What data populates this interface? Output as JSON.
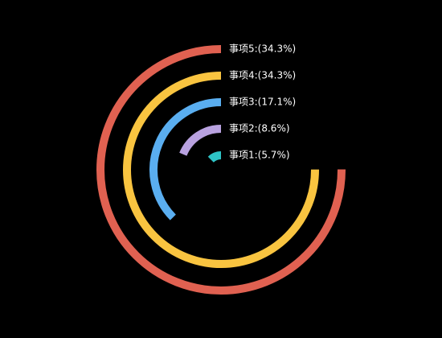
{
  "chart_data": {
    "type": "radial-bar",
    "labels": [
      "事项1:(5.7%)",
      "事项2:(8.6%)",
      "事项3:(17.1%)",
      "事项4:(34.3%)",
      "事项5:(34.3%)"
    ],
    "values": [
      5.7,
      8.6,
      17.1,
      34.3,
      34.3
    ],
    "colors": [
      "#2ec4c6",
      "#b9a2e0",
      "#5aaef0",
      "#f9c440",
      "#e06151"
    ],
    "anglelim": [
      0,
      45.7
    ]
  }
}
